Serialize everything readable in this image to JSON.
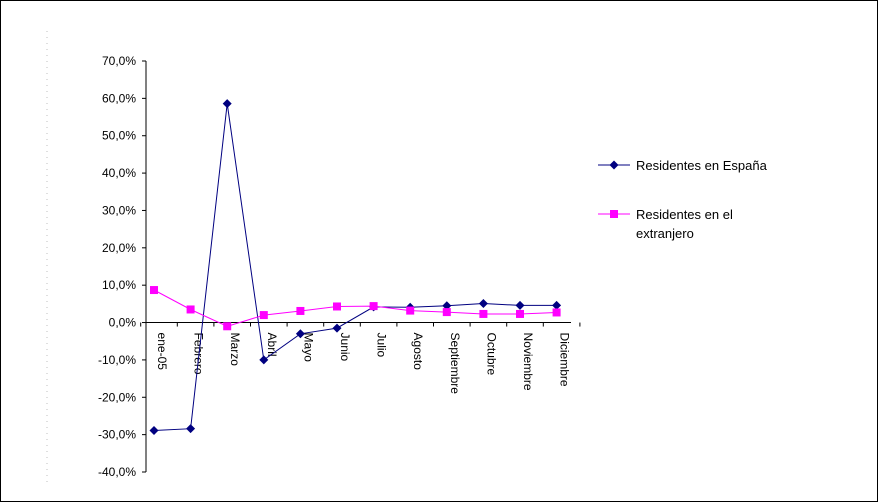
{
  "chart_data": {
    "type": "line",
    "title": "",
    "xlabel": "",
    "ylabel": "",
    "categories": [
      "ene-05",
      "Febrero",
      "Marzo",
      "Abril",
      "Mayo",
      "Junio",
      "Julio",
      "Agosto",
      "Septiembre",
      "Octubre",
      "Noviembre",
      "Diciembre"
    ],
    "y_ticks": [
      "70,0%",
      "60,0%",
      "50,0%",
      "40,0%",
      "30,0%",
      "20,0%",
      "10,0%",
      "0,0%",
      "-10,0%",
      "-20,0%",
      "-30,0%",
      "-40,0%"
    ],
    "ylim": [
      -40,
      70
    ],
    "y_step": 10,
    "y_unit": "percent",
    "grid": false,
    "legend_position": "right",
    "series": [
      {
        "name": "Residentes en España",
        "values": [
          -28.9,
          -28.4,
          58.6,
          -10.0,
          -3.0,
          -1.5,
          4.2,
          4.1,
          4.5,
          5.1,
          4.6,
          4.6
        ],
        "color": "#000080",
        "marker": "diamond"
      },
      {
        "name": "Residentes en el extranjero",
        "values": [
          8.7,
          3.5,
          -1.0,
          2.0,
          3.1,
          4.3,
          4.4,
          3.2,
          2.8,
          2.3,
          2.3,
          2.7
        ],
        "color": "#FF00FF",
        "marker": "square"
      }
    ],
    "legend_lines": [
      [
        "Residentes en España"
      ],
      [
        "Residentes en el",
        "extranjero"
      ]
    ]
  }
}
